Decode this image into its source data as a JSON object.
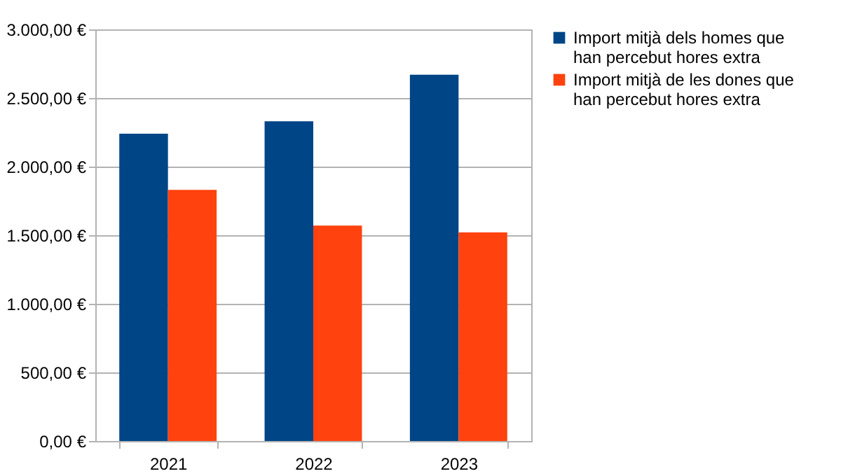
{
  "chart_data": {
    "type": "bar",
    "categories": [
      "2021",
      "2022",
      "2023"
    ],
    "series": [
      {
        "name": "Import mitjà dels homes que han percebut hores extra",
        "color": "#004586",
        "values": [
          2240,
          2330,
          2670
        ]
      },
      {
        "name": "Import mitjà de les dones que han percebut hores extra",
        "color": "#ff420e",
        "values": [
          1830,
          1570,
          1520
        ]
      }
    ],
    "ylim": [
      0,
      3000
    ],
    "yticks": [
      {
        "value": 0,
        "label": "0,00 €"
      },
      {
        "value": 500,
        "label": "500,00 €"
      },
      {
        "value": 1000,
        "label": "1.000,00 €"
      },
      {
        "value": 1500,
        "label": "1.500,00 €"
      },
      {
        "value": 2000,
        "label": "2.000,00 €"
      },
      {
        "value": 2500,
        "label": "2.500,00 €"
      },
      {
        "value": 3000,
        "label": "3.000,00 €"
      }
    ],
    "grid": "y",
    "legend": "right"
  }
}
